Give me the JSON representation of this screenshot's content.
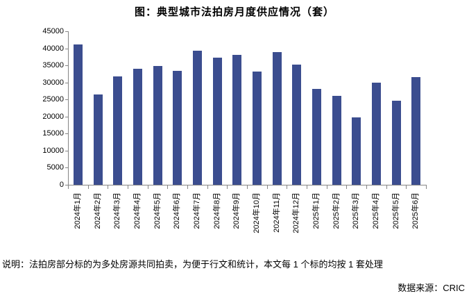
{
  "title": "图：典型城市法拍房月度供应情况（套）",
  "note": "说明：法拍房部分标的为多处房源共同拍卖，为便于行文和统计，本文每 1 个标的均按 1 套处理",
  "source": "数据来源：CRIC",
  "colors": {
    "bar": "#3B4D8F",
    "axis": "#858585",
    "text": "#000000",
    "background": "#FFFFFF"
  },
  "chart_data": {
    "type": "bar",
    "title": "图：典型城市法拍房月度供应情况（套）",
    "categories": [
      "2024年1月",
      "2024年2月",
      "2024年3月",
      "2024年4月",
      "2024年5月",
      "2024年6月",
      "2024年7月",
      "2024年8月",
      "2024年9月",
      "2024年10月",
      "2024年11月",
      "2024年12月",
      "2025年1月",
      "2025年2月",
      "2025年3月",
      "2025年4月",
      "2025年5月",
      "2025年6月"
    ],
    "values": [
      41100,
      26500,
      31800,
      34000,
      34900,
      33300,
      39300,
      37200,
      38000,
      33100,
      38800,
      35300,
      28100,
      26100,
      19700,
      30000,
      24700,
      31500
    ],
    "xlabel": "",
    "ylabel": "",
    "ylim": [
      0,
      45000
    ],
    "ytick_step": 5000,
    "grid": false,
    "legend_position": "none"
  }
}
